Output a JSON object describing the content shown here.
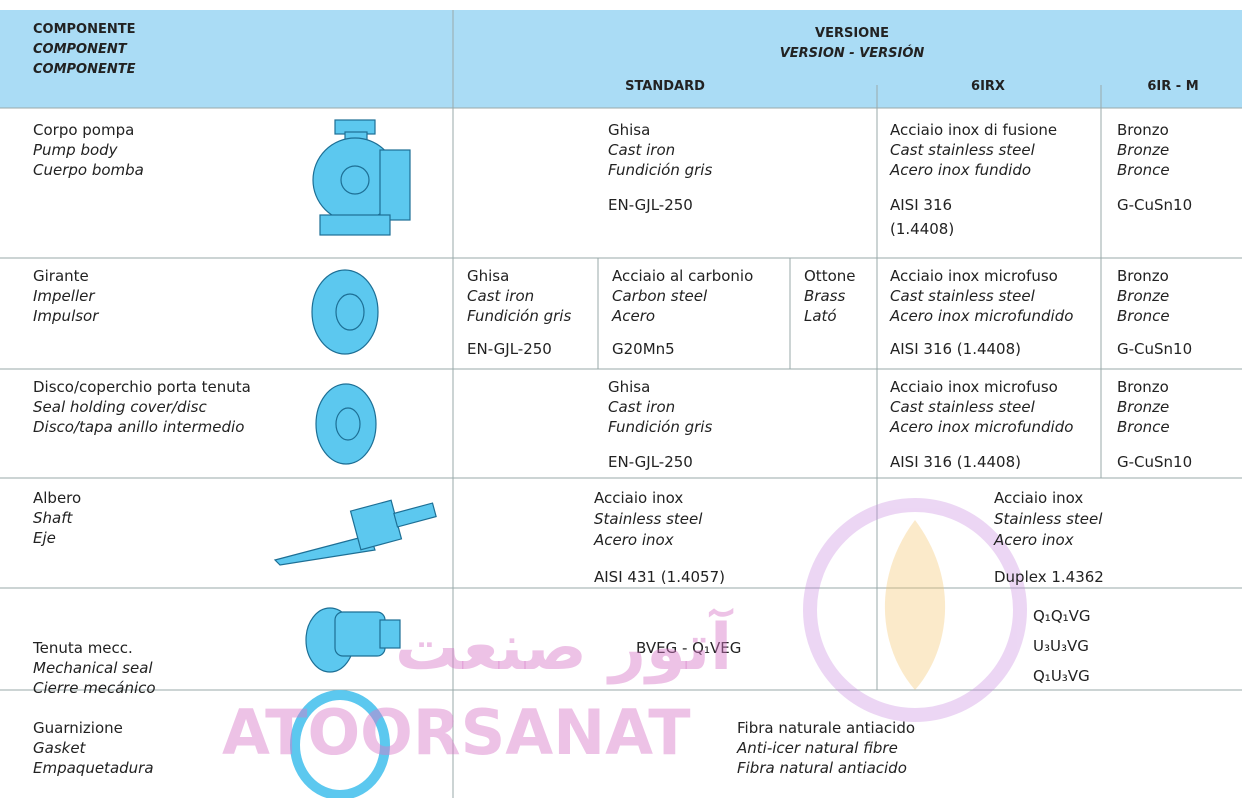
{
  "header": {
    "component": [
      "COMPONENTE",
      "COMPONENT",
      "COMPONENTE"
    ],
    "version": [
      "VERSIONE",
      "VERSION - VERSIÓN"
    ],
    "columns": [
      "STANDARD",
      "6IRX",
      "6IR - M"
    ]
  },
  "rows": [
    {
      "component": [
        "Corpo pompa",
        "Pump body",
        "Cuerpo bomba"
      ],
      "cells": [
        {
          "lines": [
            "Ghisa",
            "Cast iron",
            "Fundición gris"
          ],
          "code": [
            "EN-GJL-250"
          ]
        },
        {
          "lines": [
            "Acciaio inox di fusione",
            "Cast stainless steel",
            "Acero inox fundido"
          ],
          "code": [
            "AISI 316",
            "(1.4408)"
          ]
        },
        {
          "lines": [
            "Bronzo",
            "Bronze",
            "Bronce"
          ],
          "code": [
            "G-CuSn10"
          ]
        }
      ]
    },
    {
      "component": [
        "Girante",
        "Impeller",
        "Impulsor"
      ],
      "cells": [
        {
          "lines": [
            "Ghisa",
            "Cast iron",
            "Fundición gris"
          ],
          "code": [
            "EN-GJL-250"
          ]
        },
        {
          "lines": [
            "Acciaio al carbonio",
            "Carbon steel",
            "Acero"
          ],
          "code": [
            "G20Mn5"
          ]
        },
        {
          "lines": [
            "Ottone",
            "Brass",
            "Lató"
          ],
          "code": []
        },
        {
          "lines": [
            "Acciaio inox microfuso",
            "Cast stainless steel",
            "Acero inox microfundido"
          ],
          "code": [
            "AISI 316 (1.4408)"
          ]
        },
        {
          "lines": [
            "Bronzo",
            "Bronze",
            "Bronce"
          ],
          "code": [
            "G-CuSn10"
          ]
        }
      ]
    },
    {
      "component": [
        "Disco/coperchio porta tenuta",
        "Seal holding cover/disc",
        "Disco/tapa anillo intermedio"
      ],
      "cells": [
        {
          "lines": [
            "Ghisa",
            "Cast iron",
            "Fundición gris"
          ],
          "code": [
            "EN-GJL-250"
          ]
        },
        {
          "lines": [
            "Acciaio inox microfuso",
            "Cast stainless steel",
            "Acero inox microfundido"
          ],
          "code": [
            "AISI 316 (1.4408)"
          ]
        },
        {
          "lines": [
            "Bronzo",
            "Bronze",
            "Bronce"
          ],
          "code": [
            "G-CuSn10"
          ]
        }
      ]
    },
    {
      "component": [
        "Albero",
        "Shaft",
        "Eje"
      ],
      "cells": [
        {
          "lines": [
            "Acciaio inox",
            "Stainless steel",
            "Acero inox"
          ],
          "code": [
            "AISI 431 (1.4057)"
          ]
        },
        {
          "lines": [
            "Acciaio inox",
            "Stainless steel",
            "Acero inox"
          ],
          "code": [
            "Duplex 1.4362"
          ]
        }
      ]
    },
    {
      "component": [
        "Tenuta mecc.",
        "Mechanical seal",
        "Cierre mecánico"
      ],
      "cells": [
        {
          "lines": [
            "BVEG  - Q₁VEG"
          ],
          "code": []
        },
        {
          "lines": [
            "Q₁Q₁VG",
            "U₃U₃VG",
            "Q₁U₃VG"
          ],
          "code": []
        }
      ]
    },
    {
      "component": [
        "Guarnizione",
        "Gasket",
        "Empaquetadura"
      ],
      "cells": [
        {
          "lines": [
            "Fibra naturale antiacido",
            "Anti-icer natural fibre",
            "Fibra natural antiacido"
          ],
          "code": []
        }
      ]
    }
  ],
  "watermark": [
    "آتور صنعت",
    "ATOORSANAT"
  ]
}
